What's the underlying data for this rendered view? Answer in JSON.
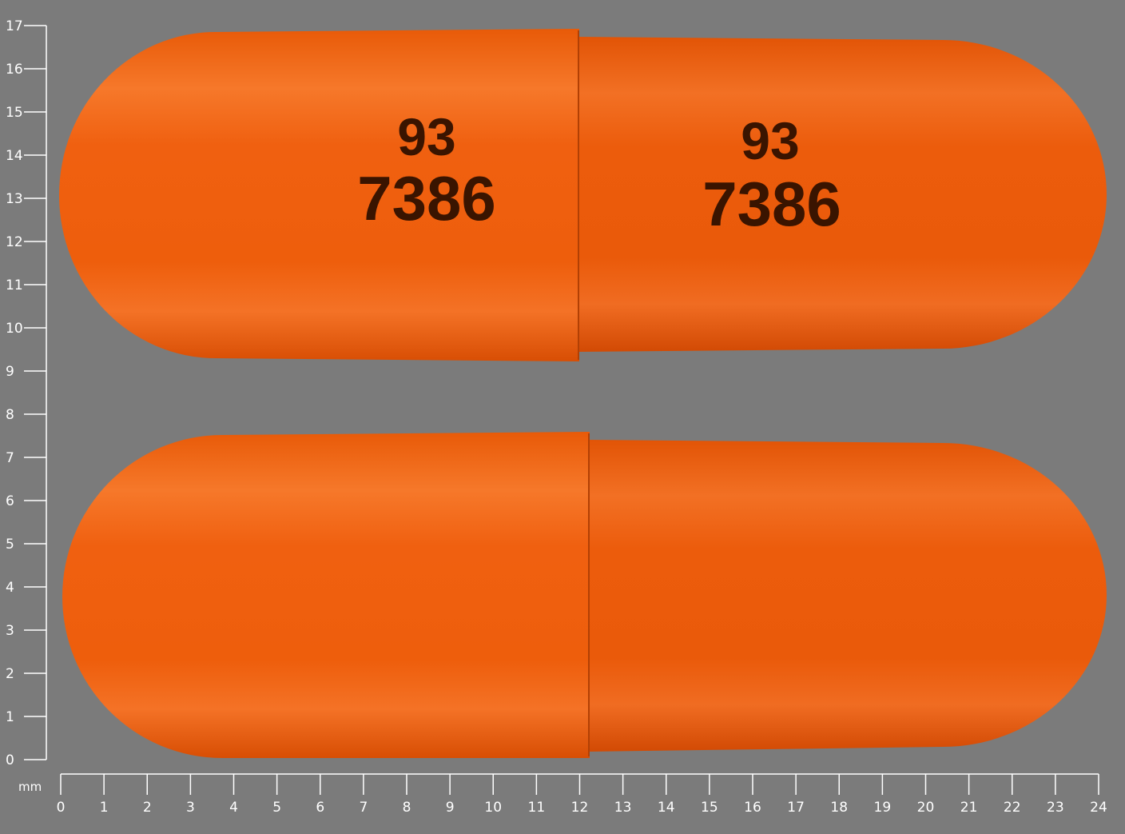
{
  "scale": {
    "unit": "mm",
    "x_ticks": [
      "0",
      "1",
      "2",
      "3",
      "4",
      "5",
      "6",
      "7",
      "8",
      "9",
      "10",
      "11",
      "12",
      "13",
      "14",
      "15",
      "16",
      "17",
      "18",
      "19",
      "20",
      "21",
      "22",
      "23",
      "24"
    ],
    "y_ticks": [
      "0",
      "1",
      "2",
      "3",
      "4",
      "5",
      "6",
      "7",
      "8",
      "9",
      "10",
      "11",
      "12",
      "13",
      "14",
      "15",
      "16",
      "17"
    ]
  },
  "capsules": [
    {
      "cap_imprint": {
        "line1": "93",
        "line2": "7386"
      },
      "body_imprint": {
        "line1": "93",
        "line2": "7386"
      }
    },
    {}
  ],
  "colors": {
    "background": "#7b7b7b",
    "capsule": "#f06010",
    "imprint": "#3a1400",
    "scale": "#ffffff"
  }
}
